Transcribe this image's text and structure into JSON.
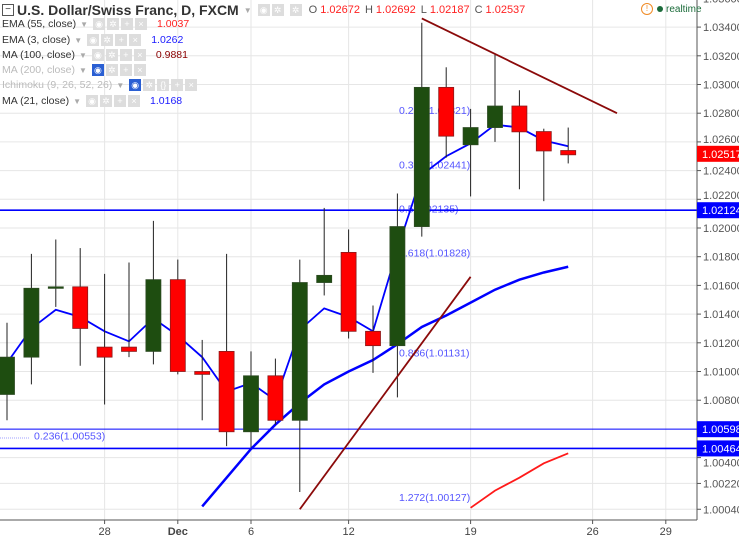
{
  "header": {
    "title": "U.S. Dollar/Swiss Franc, D, FXCM",
    "ohlc": {
      "o_label": "O",
      "o": "1.02672",
      "h_label": "H",
      "h": "1.02692",
      "l_label": "L",
      "l": "1.02187",
      "c_label": "C",
      "c": "1.02537"
    },
    "realtime_label": "realtime"
  },
  "indicators": [
    {
      "label": "EMA (55, close)",
      "value": "1.0037",
      "color": "#ff2020",
      "hidden": false
    },
    {
      "label": "EMA (3, close)",
      "value": "1.0262",
      "color": "#1a1aff",
      "hidden": false
    },
    {
      "label": "MA (100, close)",
      "value": "0.9881",
      "color": "#8b0000",
      "hidden": false
    },
    {
      "label": "MA (200, close)",
      "value": "",
      "color": "#bbbbbb",
      "hidden": true
    },
    {
      "label": "Ichimoku (9, 26, 52, 26)",
      "value": "",
      "color": "#bbbbbb",
      "hidden": true
    },
    {
      "label": "MA (21, close)",
      "value": "1.0168",
      "color": "#1a1aff",
      "hidden": false
    }
  ],
  "colors": {
    "up": "#1e4d10",
    "down": "#ff0000",
    "ema3": "#0000ff",
    "ma21": "#0000ff",
    "ema55": "#ff1a1a",
    "trend": "#8b0a0a",
    "hline": "#0000ff",
    "fib": "#5555ff",
    "grid": "#e6e6e6"
  },
  "chart_data": {
    "type": "candlestick",
    "symbol": "USDCHF",
    "ylim": [
      1.0,
      1.036
    ],
    "y_ticks": [
      "1.03600",
      "1.03400",
      "1.03200",
      "1.03000",
      "1.02800",
      "1.02600",
      "1.02400",
      "1.02200",
      "1.02000",
      "1.01800",
      "1.01600",
      "1.01400",
      "1.01200",
      "1.01000",
      "1.00800",
      "1.00400",
      "1.00220",
      "1.00040"
    ],
    "x_ticks": [
      {
        "label": "28",
        "date": "Nov 28"
      },
      {
        "label": "Dec",
        "date": "Dec 1",
        "bold": true
      },
      {
        "label": "6",
        "date": "Dec 6"
      },
      {
        "label": "12",
        "date": "Dec 12"
      },
      {
        "label": "19",
        "date": "Dec 19"
      },
      {
        "label": "26",
        "date": "Dec 26"
      },
      {
        "label": "29",
        "date": "Dec 29"
      }
    ],
    "candles": [
      {
        "date": "Nov 22",
        "o": 1.0084,
        "h": 1.0134,
        "l": 1.0066,
        "c": 1.011
      },
      {
        "date": "Nov 23",
        "o": 1.011,
        "h": 1.0182,
        "l": 1.0091,
        "c": 1.0158
      },
      {
        "date": "Nov 24",
        "o": 1.0158,
        "h": 1.0192,
        "l": 1.0145,
        "c": 1.0159
      },
      {
        "date": "Nov 25",
        "o": 1.0159,
        "h": 1.0186,
        "l": 1.0104,
        "c": 1.013
      },
      {
        "date": "Nov 28",
        "o": 1.0117,
        "h": 1.0168,
        "l": 1.0077,
        "c": 1.011
      },
      {
        "date": "Nov 29",
        "o": 1.0117,
        "h": 1.0176,
        "l": 1.011,
        "c": 1.0114
      },
      {
        "date": "Nov 30",
        "o": 1.0114,
        "h": 1.0205,
        "l": 1.0105,
        "c": 1.0164
      },
      {
        "date": "Dec 1",
        "o": 1.0164,
        "h": 1.0178,
        "l": 1.0098,
        "c": 1.01
      },
      {
        "date": "Dec 2",
        "o": 1.01,
        "h": 1.0122,
        "l": 1.0066,
        "c": 1.0098
      },
      {
        "date": "Dec 5",
        "o": 1.0114,
        "h": 1.0182,
        "l": 1.0048,
        "c": 1.0058
      },
      {
        "date": "Dec 6",
        "o": 1.0058,
        "h": 1.0114,
        "l": 1.0047,
        "c": 1.0097
      },
      {
        "date": "Dec 7",
        "o": 1.0097,
        "h": 1.0109,
        "l": 1.0063,
        "c": 1.0066
      },
      {
        "date": "Dec 8",
        "o": 1.0066,
        "h": 1.0178,
        "l": 1.0016,
        "c": 1.0162
      },
      {
        "date": "Dec 9",
        "o": 1.0162,
        "h": 1.0214,
        "l": 1.0153,
        "c": 1.0167
      },
      {
        "date": "Dec 12",
        "o": 1.0183,
        "h": 1.0199,
        "l": 1.0123,
        "c": 1.0128
      },
      {
        "date": "Dec 13",
        "o": 1.0128,
        "h": 1.0146,
        "l": 1.0099,
        "c": 1.0118
      },
      {
        "date": "Dec 14",
        "o": 1.0118,
        "h": 1.0224,
        "l": 1.0082,
        "c": 1.0201
      },
      {
        "date": "Dec 15",
        "o": 1.0201,
        "h": 1.0343,
        "l": 1.0194,
        "c": 1.0298
      },
      {
        "date": "Dec 16",
        "o": 1.0298,
        "h": 1.0312,
        "l": 1.0249,
        "c": 1.0264
      },
      {
        "date": "Dec 19",
        "o": 1.0258,
        "h": 1.0283,
        "l": 1.0222,
        "c": 1.027
      },
      {
        "date": "Dec 20",
        "o": 1.027,
        "h": 1.0321,
        "l": 1.026,
        "c": 1.0285
      },
      {
        "date": "Dec 21",
        "o": 1.0285,
        "h": 1.0296,
        "l": 1.0227,
        "c": 1.0267
      },
      {
        "date": "Dec 22",
        "o": 1.02672,
        "h": 1.02692,
        "l": 1.02187,
        "c": 1.02537
      },
      {
        "date": "Dec 23",
        "o": 1.0254,
        "h": 1.027,
        "l": 1.0245,
        "c": 1.0251
      }
    ],
    "series": [
      {
        "name": "EMA (3, close)",
        "values": [
          1.0106,
          1.013,
          1.0143,
          1.0138,
          1.0128,
          1.0121,
          1.0137,
          1.0125,
          1.011,
          1.0086,
          1.0092,
          1.008,
          1.0129,
          1.0144,
          1.0138,
          1.0128,
          1.0185,
          1.0237,
          1.025,
          1.0259,
          1.0272,
          1.027,
          1.0261,
          1.0257
        ]
      },
      {
        "name": "MA (21, close)",
        "values": [
          null,
          null,
          null,
          null,
          null,
          null,
          null,
          null,
          1.0006,
          1.0026,
          1.0046,
          1.0063,
          1.0078,
          1.0091,
          1.01,
          1.0108,
          1.0119,
          1.0131,
          1.0139,
          1.0148,
          1.0157,
          1.0164,
          1.0169,
          1.0173
        ]
      },
      {
        "name": "EMA (55, close)",
        "values": [
          null,
          null,
          null,
          null,
          null,
          null,
          null,
          null,
          null,
          null,
          null,
          null,
          null,
          null,
          null,
          null,
          null,
          null,
          null,
          1.0005,
          1.0017,
          1.0026,
          1.0036,
          1.0043
        ]
      }
    ],
    "horizontal_lines": [
      {
        "price": 1.02124,
        "label": "1.02124"
      },
      {
        "price": 1.00598,
        "label": "1.00598"
      },
      {
        "price": 1.00464,
        "label": "1.00464"
      }
    ],
    "last_price": {
      "price": 1.02517,
      "label": "1.02517"
    },
    "trendlines": [
      {
        "from": {
          "date": "Dec 15",
          "price": 1.0346
        },
        "to": {
          "date": "Dec 27",
          "price": 1.028
        }
      },
      {
        "from": {
          "date": "Dec 8",
          "price": 1.0004
        },
        "to": {
          "date": "Dec 19",
          "price": 1.0166
        }
      }
    ],
    "fib_levels": [
      {
        "label": "0.236(1.02821)",
        "price": 1.02821
      },
      {
        "label": "0.382(1.02441)",
        "price": 1.02441
      },
      {
        "label": "0.5(1.02135)",
        "price": 1.02135
      },
      {
        "label": "0.618(1.01828)",
        "price": 1.01828
      },
      {
        "label": "0.886(1.01131)",
        "price": 1.01131
      },
      {
        "label": "1.272(1.00127)",
        "price": 1.00127
      }
    ],
    "fib_secondary": {
      "label": "0.236(1.00553)",
      "price": 1.00553
    }
  }
}
